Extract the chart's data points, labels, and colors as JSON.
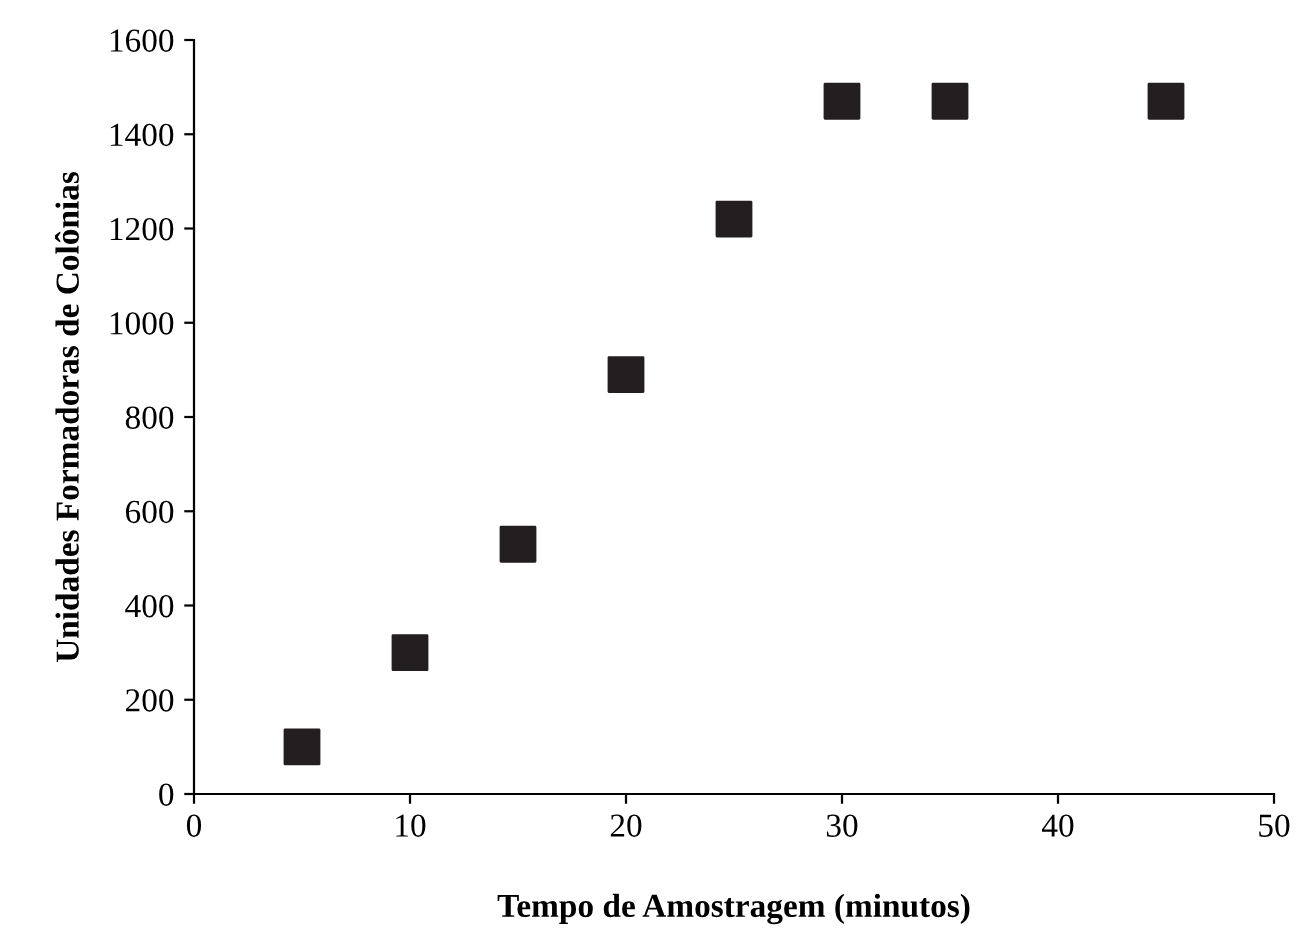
{
  "chart_data": {
    "type": "scatter",
    "xlabel": "Tempo de Amostragem (minutos)",
    "ylabel": "Unidades Formadoras de Colônias",
    "x": [
      5,
      10,
      15,
      20,
      25,
      30,
      35,
      45
    ],
    "series": [
      {
        "color": "#231f20",
        "values": [
          100,
          300,
          530,
          890,
          1220,
          1470,
          1470,
          1470
        ]
      }
    ],
    "xlim": [
      0,
      50
    ],
    "xticks": [
      0,
      10,
      20,
      30,
      40,
      50
    ],
    "ylim": [
      0,
      1600
    ],
    "yticks": [
      0,
      200,
      400,
      600,
      800,
      1000,
      1200,
      1400,
      1600
    ],
    "marker": "square",
    "grid": false,
    "legend": false
  }
}
